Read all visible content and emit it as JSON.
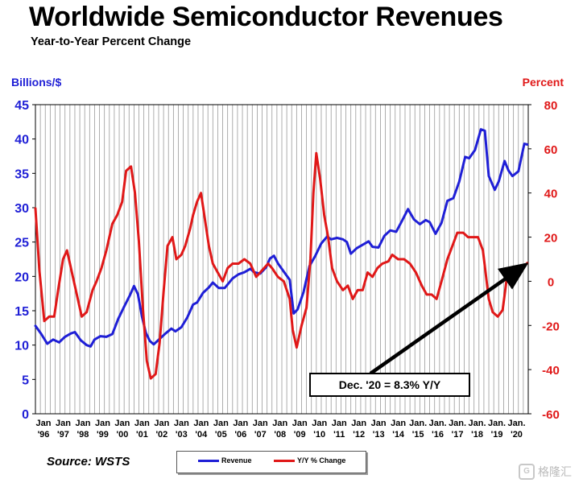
{
  "header": {
    "title": "Worldwide Semiconductor Revenues",
    "subtitle": "Year-to-Year Percent Change"
  },
  "source": "Source: WSTS",
  "watermark": "格隆汇",
  "colors": {
    "revenue": "#1f1fd6",
    "yoy": "#e01818",
    "grid": "#9a9a9a",
    "arrow": "#000000"
  },
  "chart_data": {
    "type": "line",
    "title": "Worldwide Semiconductor Revenues",
    "subtitle": "Year-to-Year Percent Change",
    "ylabel_left": "Billions/$",
    "ylabel_right": "Percent",
    "ylim_left": [
      0,
      45
    ],
    "ylim_right": [
      -60,
      80
    ],
    "yticks_left": [
      "0",
      "5",
      "10",
      "15",
      "20",
      "25",
      "30",
      "35",
      "40",
      "45"
    ],
    "yticks_right": [
      "-60",
      "-40",
      "-20",
      "0",
      "20",
      "40",
      "60",
      "80"
    ],
    "xlim": [
      1996,
      2021
    ],
    "xticks": [
      {
        "label": "Jan",
        "year": "'96",
        "x": 1996
      },
      {
        "label": "Jan",
        "year": "'97",
        "x": 1997
      },
      {
        "label": "Jan",
        "year": "'98",
        "x": 1998
      },
      {
        "label": "Jan",
        "year": "'99",
        "x": 1999
      },
      {
        "label": "Jan",
        "year": "'00",
        "x": 2000
      },
      {
        "label": "Jan",
        "year": "'01",
        "x": 2001
      },
      {
        "label": "Jan",
        "year": "'02",
        "x": 2002
      },
      {
        "label": "Jan",
        "year": "'03",
        "x": 2003
      },
      {
        "label": "Jan",
        "year": "'04",
        "x": 2004
      },
      {
        "label": "Jan",
        "year": "'05",
        "x": 2005
      },
      {
        "label": "Jan",
        "year": "'06",
        "x": 2006
      },
      {
        "label": "Jan",
        "year": "'07",
        "x": 2007
      },
      {
        "label": "Jan",
        "year": "'08",
        "x": 2008
      },
      {
        "label": "Jan",
        "year": "'09",
        "x": 2009
      },
      {
        "label": "Jan",
        "year": "'10",
        "x": 2010
      },
      {
        "label": "Jan",
        "year": "'11",
        "x": 2011
      },
      {
        "label": "Jan",
        "year": "'12",
        "x": 2012
      },
      {
        "label": "Jan",
        "year": "'13",
        "x": 2013
      },
      {
        "label": "Jan",
        "year": "'14",
        "x": 2014
      },
      {
        "label": "Jan.",
        "year": "'15",
        "x": 2015
      },
      {
        "label": "Jan.",
        "year": "'16",
        "x": 2016
      },
      {
        "label": "Jan.",
        "year": "'17",
        "x": 2017
      },
      {
        "label": "Jan.",
        "year": "'18",
        "x": 2018
      },
      {
        "label": "Jan.",
        "year": "'19",
        "x": 2019
      },
      {
        "label": "Jan.",
        "year": "'20",
        "x": 2020
      }
    ],
    "grid": {
      "vertical": true,
      "horizontal": false
    },
    "legend": {
      "position": "bottom-center",
      "entries": [
        "Revenue",
        "Y/Y % Change"
      ]
    },
    "annotation": {
      "text": "Dec. '20 = 8.3% Y/Y",
      "points_to": [
        2020.95,
        8.3
      ]
    },
    "series": [
      {
        "name": "Revenue",
        "axis": "left",
        "color": "#1f1fd6",
        "points": [
          [
            1996.0,
            12.8
          ],
          [
            1996.3,
            11.6
          ],
          [
            1996.6,
            10.2
          ],
          [
            1996.9,
            10.8
          ],
          [
            1997.2,
            10.4
          ],
          [
            1997.5,
            11.2
          ],
          [
            1997.8,
            11.7
          ],
          [
            1998.0,
            11.9
          ],
          [
            1998.3,
            10.7
          ],
          [
            1998.6,
            10.0
          ],
          [
            1998.8,
            9.8
          ],
          [
            1999.0,
            10.8
          ],
          [
            1999.3,
            11.3
          ],
          [
            1999.6,
            11.2
          ],
          [
            1999.9,
            11.6
          ],
          [
            2000.2,
            13.8
          ],
          [
            2000.5,
            15.6
          ],
          [
            2000.8,
            17.3
          ],
          [
            2001.0,
            18.6
          ],
          [
            2001.2,
            17.4
          ],
          [
            2001.4,
            14.2
          ],
          [
            2001.6,
            11.8
          ],
          [
            2001.8,
            10.6
          ],
          [
            2002.0,
            10.1
          ],
          [
            2002.3,
            10.9
          ],
          [
            2002.6,
            11.7
          ],
          [
            2002.9,
            12.4
          ],
          [
            2003.1,
            12.0
          ],
          [
            2003.4,
            12.6
          ],
          [
            2003.7,
            14.0
          ],
          [
            2004.0,
            15.9
          ],
          [
            2004.2,
            16.2
          ],
          [
            2004.5,
            17.6
          ],
          [
            2004.8,
            18.4
          ],
          [
            2005.0,
            19.1
          ],
          [
            2005.3,
            18.3
          ],
          [
            2005.6,
            18.3
          ],
          [
            2006.0,
            19.7
          ],
          [
            2006.3,
            20.3
          ],
          [
            2006.6,
            20.6
          ],
          [
            2006.9,
            21.1
          ],
          [
            2007.1,
            20.6
          ],
          [
            2007.4,
            20.4
          ],
          [
            2007.7,
            21.3
          ],
          [
            2007.9,
            22.6
          ],
          [
            2008.1,
            23.0
          ],
          [
            2008.3,
            21.9
          ],
          [
            2008.6,
            20.7
          ],
          [
            2008.9,
            19.5
          ],
          [
            2009.1,
            14.6
          ],
          [
            2009.3,
            15.2
          ],
          [
            2009.6,
            17.7
          ],
          [
            2009.9,
            21.5
          ],
          [
            2010.2,
            23.0
          ],
          [
            2010.5,
            24.8
          ],
          [
            2010.8,
            25.8
          ],
          [
            2011.0,
            25.4
          ],
          [
            2011.3,
            25.6
          ],
          [
            2011.6,
            25.4
          ],
          [
            2011.8,
            25.0
          ],
          [
            2012.0,
            23.3
          ],
          [
            2012.3,
            24.1
          ],
          [
            2012.6,
            24.6
          ],
          [
            2012.9,
            25.1
          ],
          [
            2013.1,
            24.3
          ],
          [
            2013.4,
            24.2
          ],
          [
            2013.7,
            25.9
          ],
          [
            2014.0,
            26.7
          ],
          [
            2014.3,
            26.5
          ],
          [
            2014.6,
            28.1
          ],
          [
            2014.9,
            29.8
          ],
          [
            2015.2,
            28.3
          ],
          [
            2015.5,
            27.6
          ],
          [
            2015.8,
            28.2
          ],
          [
            2016.0,
            27.9
          ],
          [
            2016.3,
            26.2
          ],
          [
            2016.6,
            27.8
          ],
          [
            2016.9,
            31.0
          ],
          [
            2017.2,
            31.4
          ],
          [
            2017.5,
            33.8
          ],
          [
            2017.8,
            37.4
          ],
          [
            2018.0,
            37.2
          ],
          [
            2018.3,
            38.4
          ],
          [
            2018.6,
            41.4
          ],
          [
            2018.8,
            41.2
          ],
          [
            2019.0,
            34.6
          ],
          [
            2019.3,
            32.6
          ],
          [
            2019.5,
            33.8
          ],
          [
            2019.8,
            36.8
          ],
          [
            2020.0,
            35.4
          ],
          [
            2020.2,
            34.6
          ],
          [
            2020.5,
            35.3
          ],
          [
            2020.8,
            39.3
          ],
          [
            2020.95,
            39.2
          ]
        ]
      },
      {
        "name": "Y/Y % Change",
        "axis": "right",
        "color": "#e01818",
        "points": [
          [
            1996.0,
            33
          ],
          [
            1996.2,
            5
          ],
          [
            1996.45,
            -18
          ],
          [
            1996.7,
            -16
          ],
          [
            1996.95,
            -16
          ],
          [
            1997.15,
            -4
          ],
          [
            1997.4,
            10
          ],
          [
            1997.6,
            14
          ],
          [
            1997.85,
            4
          ],
          [
            1998.1,
            -6
          ],
          [
            1998.35,
            -16
          ],
          [
            1998.6,
            -14
          ],
          [
            1998.9,
            -4
          ],
          [
            1999.1,
            0
          ],
          [
            1999.35,
            6
          ],
          [
            1999.6,
            14
          ],
          [
            1999.9,
            26
          ],
          [
            2000.15,
            30
          ],
          [
            2000.4,
            36
          ],
          [
            2000.6,
            50
          ],
          [
            2000.85,
            52
          ],
          [
            2001.05,
            40
          ],
          [
            2001.25,
            18
          ],
          [
            2001.45,
            -12
          ],
          [
            2001.65,
            -36
          ],
          [
            2001.85,
            -44
          ],
          [
            2002.1,
            -42
          ],
          [
            2002.3,
            -28
          ],
          [
            2002.5,
            -5
          ],
          [
            2002.7,
            16
          ],
          [
            2002.95,
            20
          ],
          [
            2003.15,
            10
          ],
          [
            2003.4,
            12
          ],
          [
            2003.6,
            16
          ],
          [
            2003.85,
            24
          ],
          [
            2004.0,
            30
          ],
          [
            2004.2,
            36
          ],
          [
            2004.4,
            40
          ],
          [
            2004.6,
            28
          ],
          [
            2004.8,
            16
          ],
          [
            2005.0,
            8
          ],
          [
            2005.25,
            4
          ],
          [
            2005.5,
            0
          ],
          [
            2005.75,
            6
          ],
          [
            2006.0,
            8
          ],
          [
            2006.3,
            8
          ],
          [
            2006.6,
            10
          ],
          [
            2006.9,
            8
          ],
          [
            2007.2,
            2
          ],
          [
            2007.5,
            5
          ],
          [
            2007.8,
            8
          ],
          [
            2008.0,
            6
          ],
          [
            2008.3,
            2
          ],
          [
            2008.6,
            0
          ],
          [
            2008.9,
            -8
          ],
          [
            2009.05,
            -22
          ],
          [
            2009.25,
            -30
          ],
          [
            2009.5,
            -20
          ],
          [
            2009.75,
            -12
          ],
          [
            2009.95,
            10
          ],
          [
            2010.1,
            40
          ],
          [
            2010.25,
            58
          ],
          [
            2010.45,
            46
          ],
          [
            2010.65,
            30
          ],
          [
            2010.85,
            20
          ],
          [
            2011.05,
            6
          ],
          [
            2011.3,
            0
          ],
          [
            2011.6,
            -4
          ],
          [
            2011.85,
            -2
          ],
          [
            2012.1,
            -8
          ],
          [
            2012.35,
            -4
          ],
          [
            2012.6,
            -4
          ],
          [
            2012.85,
            4
          ],
          [
            2013.1,
            2
          ],
          [
            2013.35,
            6
          ],
          [
            2013.6,
            8
          ],
          [
            2013.9,
            9
          ],
          [
            2014.1,
            12
          ],
          [
            2014.4,
            10
          ],
          [
            2014.7,
            10
          ],
          [
            2015.0,
            8
          ],
          [
            2015.3,
            4
          ],
          [
            2015.6,
            -2
          ],
          [
            2015.85,
            -6
          ],
          [
            2016.1,
            -6
          ],
          [
            2016.35,
            -8
          ],
          [
            2016.6,
            0
          ],
          [
            2016.9,
            10
          ],
          [
            2017.15,
            16
          ],
          [
            2017.4,
            22
          ],
          [
            2017.7,
            22
          ],
          [
            2017.95,
            20
          ],
          [
            2018.2,
            20
          ],
          [
            2018.45,
            20
          ],
          [
            2018.7,
            14
          ],
          [
            2019.0,
            -8
          ],
          [
            2019.2,
            -14
          ],
          [
            2019.45,
            -16
          ],
          [
            2019.7,
            -13
          ],
          [
            2019.95,
            4
          ],
          [
            2020.15,
            6
          ],
          [
            2020.45,
            4
          ],
          [
            2020.7,
            6
          ],
          [
            2020.95,
            8.3
          ]
        ]
      }
    ]
  }
}
